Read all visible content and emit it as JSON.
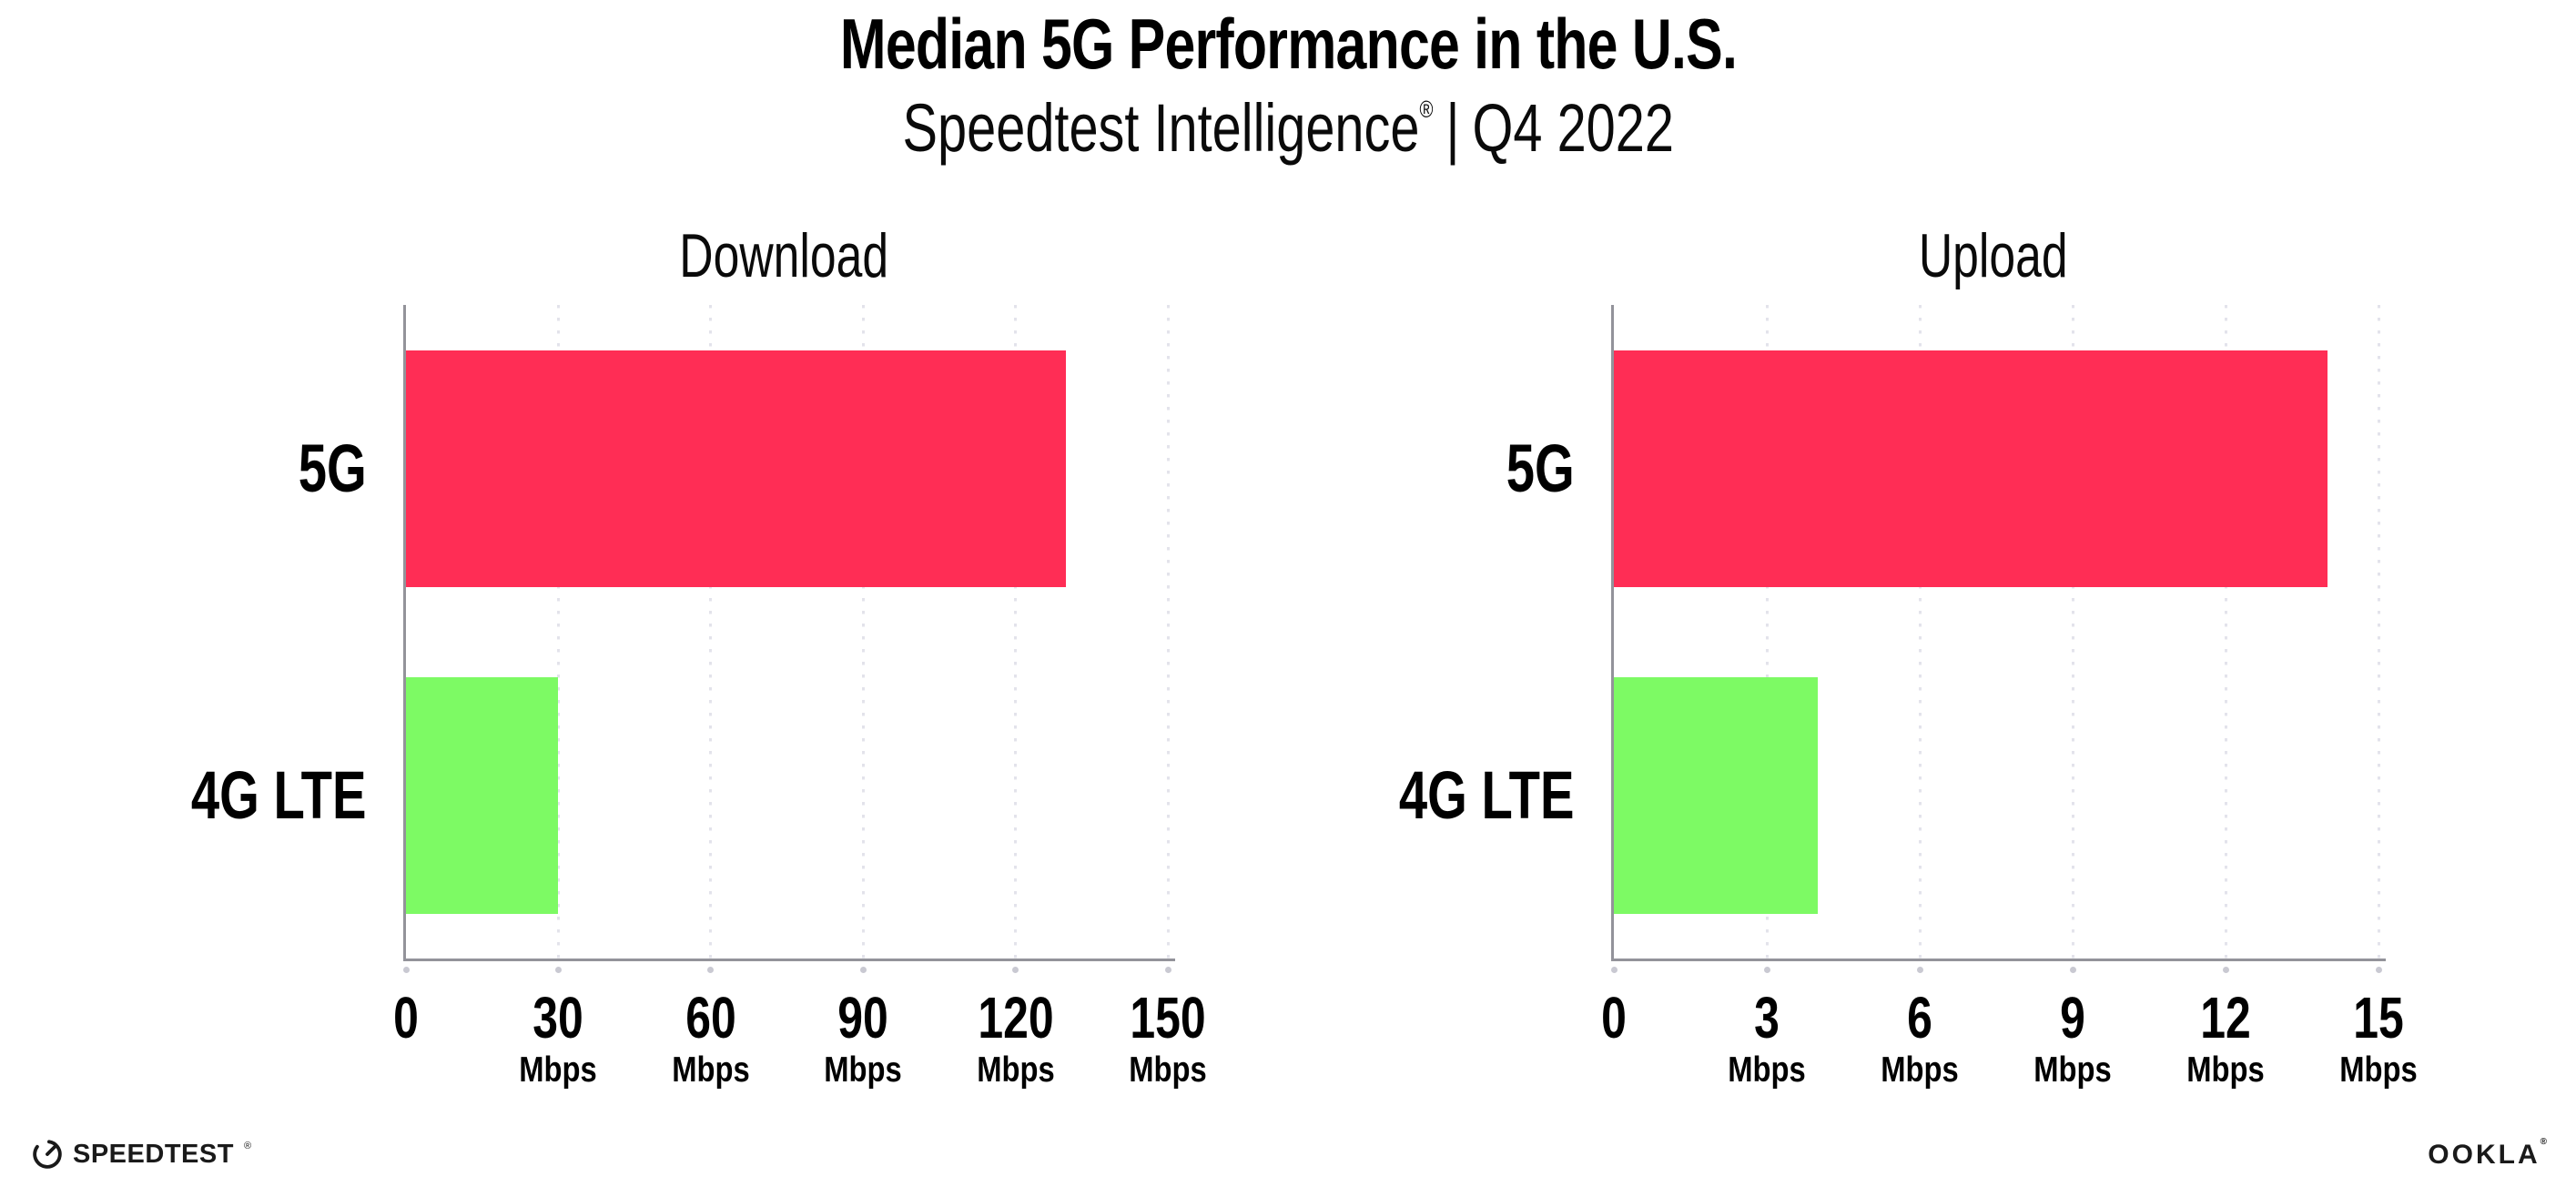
{
  "header": {
    "title": "Median 5G Performance in the U.S.",
    "subtitle_brand": "Speedtest Intelligence",
    "subtitle_reg": "®",
    "subtitle_separator": "|",
    "subtitle_period": "Q4 2022"
  },
  "chart_data": [
    {
      "type": "bar",
      "orientation": "horizontal",
      "title": "Download",
      "categories": [
        "5G",
        "4G LTE"
      ],
      "values": [
        130,
        30
      ],
      "unit": "Mbps",
      "xlim": [
        0,
        150
      ],
      "ticks": [
        0,
        30,
        60,
        90,
        120,
        150
      ],
      "bar_colors": [
        "#FF2D55",
        "#7DFA64"
      ],
      "grid": "dotted-vertical",
      "legend": "none"
    },
    {
      "type": "bar",
      "orientation": "horizontal",
      "title": "Upload",
      "categories": [
        "5G",
        "4G LTE"
      ],
      "values": [
        14,
        4
      ],
      "unit": "Mbps",
      "xlim": [
        0,
        15
      ],
      "ticks": [
        0,
        3,
        6,
        9,
        12,
        15
      ],
      "bar_colors": [
        "#FF2D55",
        "#7DFA64"
      ],
      "grid": "dotted-vertical",
      "legend": "none"
    }
  ],
  "footer": {
    "speedtest_logo_text": "SPEEDTEST",
    "speedtest_logo_mark": "®",
    "ookla_logo_text": "OOKLA",
    "ookla_logo_mark": "®"
  },
  "colors": {
    "bar_5g": "#FF2D55",
    "bar_4g_lte": "#7DFA64",
    "axis": "#93939A",
    "gridline": "#E3E3EB",
    "tick_dot": "#C9C9D2",
    "text": "#000000",
    "background": "#FFFFFF"
  }
}
